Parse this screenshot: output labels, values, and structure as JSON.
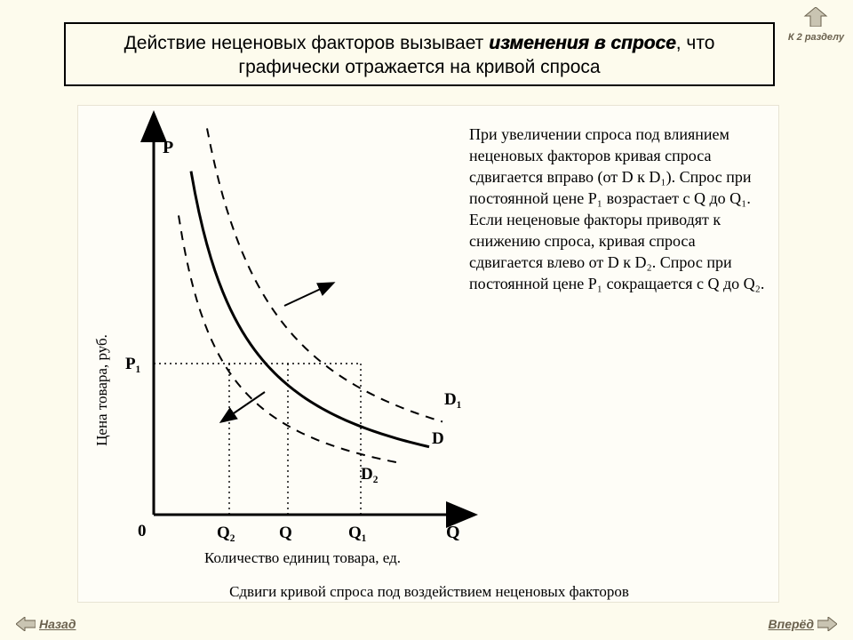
{
  "title": {
    "pre": "Действие неценовых факторов вызывает ",
    "emph": "изменения в спросе",
    "post": ", что графически отражается на кривой спроса"
  },
  "nav": {
    "top": "К 2 разделу",
    "back": "Назад",
    "forward": "Вперёд"
  },
  "figure": {
    "type": "line-chart-economics-demand-shift",
    "background_color": "#fefdf7",
    "axis_color": "#000000",
    "axis_width": 3,
    "y_axis_label": "Цена товара, руб.",
    "x_axis_label": "Количество единиц товара, ед.",
    "caption": "Сдвиги кривой спроса под воздействием неценовых факторов",
    "origin_label": "0",
    "y_end_label": "P",
    "x_end_label": "Q",
    "y_tick_label": "P₁",
    "x_tick_labels": [
      "Q₂",
      "Q",
      "Q₁"
    ],
    "curve_D": {
      "label": "D",
      "style": "solid",
      "width": 3,
      "color": "#000000"
    },
    "curve_D1": {
      "label": "D₁",
      "style": "dashed",
      "width": 2,
      "color": "#000000"
    },
    "curve_D2": {
      "label": "D₂",
      "style": "dashed",
      "width": 2,
      "color": "#000000"
    },
    "guide_style": "dotted",
    "annotation_text": "При увеличении спроса под влиянием неценовых факторов кривая спроса сдвигается вправо (от D к D₁). Спрос при постоянной цене P₁ возрастает с Q до Q₁. Если неценовые факторы приводят к снижению спроса, кривая спроса сдвигается влево от D к D₂. Спрос при постоянной цене P₁ сокращается с Q до Q₂.",
    "annotation_fontsize": 18,
    "label_fontsize": 18,
    "caption_fontsize": 17,
    "axis_title_fontsize": 17
  },
  "colors": {
    "page_bg": "#fdfbed",
    "nav_text": "#6b624f",
    "nav_icon_fill": "#c9c4b2",
    "nav_icon_stroke": "#6b624f"
  }
}
